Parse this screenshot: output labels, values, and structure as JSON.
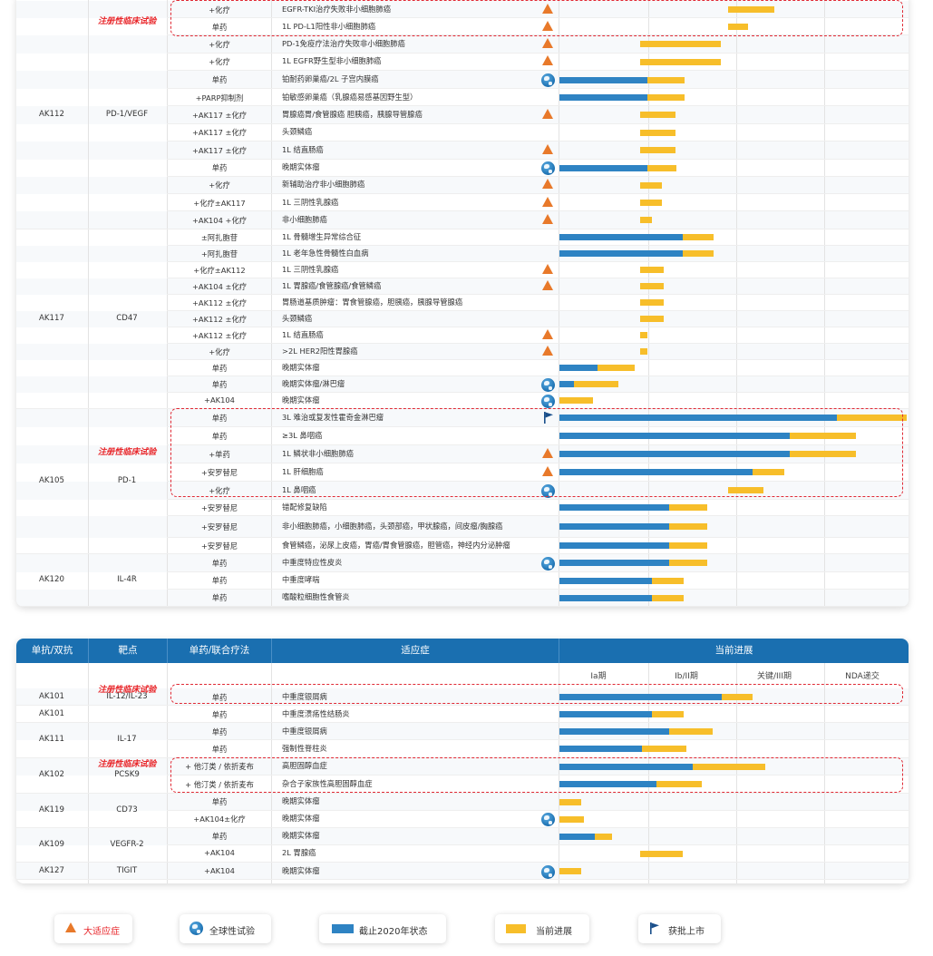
{
  "panel1": {
    "groups": [
      {
        "drug": "AK112",
        "target": "PD-1/VEGF",
        "rows": [
          {
            "combo": "+化疗",
            "ind": "EGFR-TKI治疗失败非小细胞肺癌",
            "mark": "tri",
            "blue": 0,
            "yellow": 0.52,
            "ystart": 1.92
          },
          {
            "combo": "单药",
            "ind": "1L PD-L1阳性非小细胞肺癌",
            "mark": "tri",
            "blue": 0,
            "yellow": 0.22,
            "ystart": 1.92
          },
          {
            "combo": "+化疗",
            "ind": "PD-1免疫疗法治疗失败非小细胞肺癌",
            "mark": "tri",
            "blue": 0,
            "yellow": 0.92,
            "ystart": 0.92
          },
          {
            "combo": "+化疗",
            "ind": "1L EGFR野生型非小细胞肺癌",
            "mark": "tri",
            "blue": 0,
            "yellow": 0.92,
            "ystart": 0.92
          },
          {
            "combo": "单药",
            "ind": "铂耐药卵巢癌/2L 子宫内膜癌",
            "mark": "globe",
            "blue": 1.0,
            "yellow": 0.42,
            "ystart": 0
          },
          {
            "combo": "+PARP抑制剂",
            "ind": "铂敏感卵巢癌（乳腺癌易感基因野生型）",
            "mark": "",
            "blue": 1.0,
            "yellow": 0.42,
            "ystart": 0
          },
          {
            "combo": "+AK117 ±化疗",
            "ind": "胃腺癌胃/食管腺癌 胆胰癌，胰腺导管腺癌",
            "mark": "tri",
            "blue": 0,
            "yellow": 0.4,
            "ystart": 0.92
          },
          {
            "combo": "+AK117 ±化疗",
            "ind": "头颈鳞癌",
            "mark": "",
            "blue": 0,
            "yellow": 0.4,
            "ystart": 0.92
          },
          {
            "combo": "+AK117 ±化疗",
            "ind": "1L 结直肠癌",
            "mark": "tri",
            "blue": 0,
            "yellow": 0.4,
            "ystart": 0.92
          },
          {
            "combo": "单药",
            "ind": "晚期实体瘤",
            "mark": "globe",
            "blue": 1.0,
            "yellow": 0.33,
            "ystart": 0
          },
          {
            "combo": "+化疗",
            "ind": "新辅助治疗非小细胞肺癌",
            "mark": "tri",
            "blue": 0,
            "yellow": 0.25,
            "ystart": 0.92
          },
          {
            "combo": "+化疗±AK117",
            "ind": "1L 三阴性乳腺癌",
            "mark": "tri",
            "blue": 0,
            "yellow": 0.25,
            "ystart": 0.92
          },
          {
            "combo": "+AK104 +化疗",
            "ind": "非小细胞肺癌",
            "mark": "tri",
            "blue": 0,
            "yellow": 0.13,
            "ystart": 0.92
          }
        ]
      },
      {
        "drug": "AK117",
        "target": "CD47",
        "rows": [
          {
            "combo": "±阿扎胞苷",
            "ind": "1L 骨髓增生异常综合征",
            "mark": "",
            "blue": 1.4,
            "yellow": 0.35,
            "ystart": 0
          },
          {
            "combo": "+阿扎胞苷",
            "ind": "1L 老年急性骨髓性白血病",
            "mark": "",
            "blue": 1.4,
            "yellow": 0.35,
            "ystart": 0
          },
          {
            "combo": "+化疗±AK112",
            "ind": "1L 三阴性乳腺癌",
            "mark": "tri",
            "blue": 0,
            "yellow": 0.27,
            "ystart": 0.92
          },
          {
            "combo": "+AK104 ±化疗",
            "ind": "1L 胃腺癌/食管腺癌/食管鳞癌",
            "mark": "tri",
            "blue": 0,
            "yellow": 0.27,
            "ystart": 0.92
          },
          {
            "combo": "+AK112 ±化疗",
            "ind": "胃肠道基质肿瘤：胃食管腺癌，胆胰癌，胰腺导管腺癌",
            "mark": "",
            "blue": 0,
            "yellow": 0.27,
            "ystart": 0.92
          },
          {
            "combo": "+AK112 ±化疗",
            "ind": "头颈鳞癌",
            "mark": "",
            "blue": 0,
            "yellow": 0.27,
            "ystart": 0.92
          },
          {
            "combo": "+AK112 ±化疗",
            "ind": "1L 结直肠癌",
            "mark": "tri",
            "blue": 0,
            "yellow": 0.08,
            "ystart": 0.92
          },
          {
            "combo": "+化疗",
            "ind": ">2L HER2阳性胃腺癌",
            "mark": "tri",
            "blue": 0,
            "yellow": 0.08,
            "ystart": 0.92
          },
          {
            "combo": "单药",
            "ind": "晚期实体瘤",
            "mark": "",
            "blue": 0.43,
            "yellow": 0.43,
            "ystart": 0
          },
          {
            "combo": "单药",
            "ind": "晚期实体瘤/淋巴瘤",
            "mark": "globe",
            "blue": 0.17,
            "yellow": 0.5,
            "ystart": 0
          },
          {
            "combo": "+AK104",
            "ind": "晚期实体瘤",
            "mark": "globe",
            "blue": 0,
            "yellow": 0.38,
            "ystart": 0
          }
        ]
      },
      {
        "drug": "AK105",
        "target": "PD-1",
        "rows": [
          {
            "combo": "单药",
            "ind": "3L 难治或复发性霍奇金淋巴瘤",
            "mark": "flag",
            "blue": 3.15,
            "yellow": 0.8,
            "ystart": 0
          },
          {
            "combo": "单药",
            "ind": "≥3L 鼻咽癌",
            "mark": "",
            "blue": 2.62,
            "yellow": 0.75,
            "ystart": 0
          },
          {
            "combo": "+单药",
            "ind": "1L 鳞状非小细胞肺癌",
            "mark": "tri",
            "blue": 2.62,
            "yellow": 0.75,
            "ystart": 0
          },
          {
            "combo": "+安罗替尼",
            "ind": "1L 肝细胞癌",
            "mark": "tri",
            "blue": 2.2,
            "yellow": 0.36,
            "ystart": 0
          },
          {
            "combo": "+化疗",
            "ind": "1L 鼻咽癌",
            "mark": "globe",
            "blue": 0,
            "yellow": 0.4,
            "ystart": 1.92
          },
          {
            "combo": "+安罗替尼",
            "ind": "错配修复缺陷",
            "mark": "",
            "blue": 1.25,
            "yellow": 0.43,
            "ystart": 0
          },
          {
            "combo": "+安罗替尼",
            "ind": "非小细胞肺癌，小细胞肺癌，头颈部癌，甲状腺癌，间皮瘤/胸腺癌",
            "mark": "",
            "blue": 1.25,
            "yellow": 0.43,
            "ystart": 0
          },
          {
            "combo": "+安罗替尼",
            "ind": "食管鳞癌，泌尿上皮癌，胃癌/胃食管腺癌，胆管癌，神经内分泌肿瘤",
            "mark": "",
            "blue": 1.25,
            "yellow": 0.43,
            "ystart": 0
          }
        ]
      },
      {
        "drug": "AK120",
        "target": "IL-4R",
        "rows": [
          {
            "combo": "单药",
            "ind": "中重度特应性皮炎",
            "mark": "globe",
            "blue": 1.25,
            "yellow": 0.43,
            "ystart": 0
          },
          {
            "combo": "单药",
            "ind": "中重度哮喘",
            "mark": "",
            "blue": 1.05,
            "yellow": 0.36,
            "ystart": 0
          },
          {
            "combo": "单药",
            "ind": "嗜酸粒细胞性食管炎",
            "mark": "",
            "blue": 1.05,
            "yellow": 0.36,
            "ystart": 0
          }
        ]
      }
    ],
    "red_label": "注册性临床试验"
  },
  "panel2": {
    "headers": {
      "c1": "单抗/双抗",
      "c2": "靶点",
      "c3": "单药/联合疗法",
      "c4": "适应症",
      "c5": "当前进展"
    },
    "stages": [
      "Ia期",
      "Ib/II期",
      "关键/III期",
      "NDA递交"
    ],
    "groups": [
      {
        "drug": "AK101",
        "target": "IL-12/IL-23",
        "rows": [
          {
            "combo": "单药",
            "ind": "中重度银屑病",
            "mark": "",
            "blue": 1.85,
            "yellow": 0.35,
            "ystart": 0
          }
        ]
      },
      {
        "drug": "AK101",
        "target": "",
        "rows": [
          {
            "combo": "单药",
            "ind": "中重度溃疡性结肠炎",
            "mark": "",
            "blue": 1.05,
            "yellow": 0.36,
            "ystart": 0
          }
        ]
      },
      {
        "drug": "AK111",
        "target": "IL-17",
        "rows": [
          {
            "combo": "单药",
            "ind": "中重度银屑病",
            "mark": "",
            "blue": 1.25,
            "yellow": 0.49,
            "ystart": 0
          },
          {
            "combo": "单药",
            "ind": "强制性脊柱炎",
            "mark": "",
            "blue": 0.94,
            "yellow": 0.5,
            "ystart": 0
          }
        ]
      },
      {
        "drug": "AK102",
        "target": "PCSK9",
        "rows": [
          {
            "combo": "+ 他汀类 / 依折麦布",
            "ind": "高胆固醇血症",
            "mark": "",
            "blue": 1.52,
            "yellow": 0.82,
            "ystart": 0
          },
          {
            "combo": "+ 他汀类 / 依折麦布",
            "ind": "杂合子家族性高胆固醇血症",
            "mark": "",
            "blue": 1.1,
            "yellow": 0.52,
            "ystart": 0
          }
        ]
      },
      {
        "drug": "AK119",
        "target": "CD73",
        "rows": [
          {
            "combo": "单药",
            "ind": "晚期实体瘤",
            "mark": "",
            "blue": 0,
            "yellow": 0.25,
            "ystart": 0
          },
          {
            "combo": "+AK104±化疗",
            "ind": "晚期实体瘤",
            "mark": "globe",
            "blue": 0,
            "yellow": 0.28,
            "ystart": 0
          }
        ]
      },
      {
        "drug": "AK109",
        "target": "VEGFR-2",
        "rows": [
          {
            "combo": "单药",
            "ind": "晚期实体瘤",
            "mark": "",
            "blue": 0.4,
            "yellow": 0.2,
            "ystart": 0
          },
          {
            "combo": "+AK104",
            "ind": "2L 胃腺癌",
            "mark": "",
            "blue": 0,
            "yellow": 0.48,
            "ystart": 0.92
          }
        ]
      },
      {
        "drug": "AK127",
        "target": "TIGIT",
        "rows": [
          {
            "combo": "+AK104",
            "ind": "晚期实体瘤",
            "mark": "globe",
            "blue": 0,
            "yellow": 0.25,
            "ystart": 0
          }
        ]
      }
    ],
    "red_labels": [
      "注册性临床试验",
      "注册性临床试验"
    ]
  },
  "legend": {
    "tri": "大适应症",
    "globe": "全球性试验",
    "blue": "截止2020年状态",
    "yellow": "当前进展",
    "flag": "获批上市"
  },
  "colors": {
    "blue": "#2e83c3",
    "yellow": "#f7be2a",
    "header": "#1a6fb0",
    "red": "#e02a35",
    "orange": "#e8792a"
  },
  "chart_data": {
    "type": "bar",
    "title": "",
    "xlabel": "当前进展",
    "stages": [
      "Ia期",
      "Ib/II期",
      "关键/III期",
      "NDA递交"
    ],
    "xlim": [
      0,
      4
    ],
    "series": [
      {
        "name": "截止2020年状态"
      },
      {
        "name": "当前进展"
      }
    ]
  }
}
